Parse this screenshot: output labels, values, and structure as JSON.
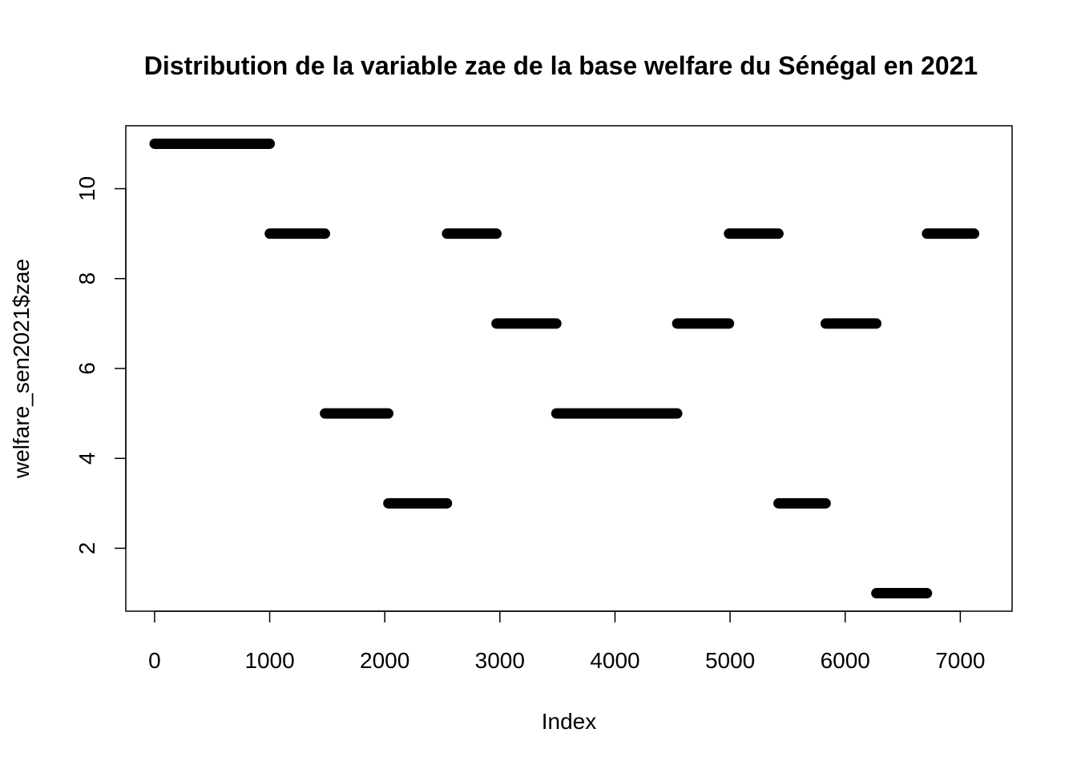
{
  "chart_data": {
    "type": "scatter",
    "title": "Distribution de la variable zae de la base welfare du Sénégal en 2021",
    "xlabel": "Index",
    "ylabel": "welfare_sen2021$zae",
    "xlim": [
      -250,
      7450
    ],
    "ylim": [
      0.6,
      11.4
    ],
    "xticks": [
      "0",
      "1000",
      "2000",
      "3000",
      "4000",
      "5000",
      "6000",
      "7000"
    ],
    "xtick_values": [
      0,
      1000,
      2000,
      3000,
      4000,
      5000,
      6000,
      7000
    ],
    "yticks": [
      "2",
      "4",
      "6",
      "8",
      "10"
    ],
    "ytick_values": [
      2,
      4,
      6,
      8,
      10
    ],
    "grid": false,
    "point_color": "#000000",
    "segments": [
      {
        "x_start": 1,
        "x_end": 1000,
        "y": 11
      },
      {
        "x_start": 1001,
        "x_end": 1480,
        "y": 9
      },
      {
        "x_start": 1481,
        "x_end": 2030,
        "y": 5
      },
      {
        "x_start": 2031,
        "x_end": 2540,
        "y": 3
      },
      {
        "x_start": 2541,
        "x_end": 2970,
        "y": 9
      },
      {
        "x_start": 2971,
        "x_end": 3490,
        "y": 7
      },
      {
        "x_start": 3491,
        "x_end": 4540,
        "y": 5
      },
      {
        "x_start": 4541,
        "x_end": 4990,
        "y": 7
      },
      {
        "x_start": 4991,
        "x_end": 5420,
        "y": 9
      },
      {
        "x_start": 5421,
        "x_end": 5830,
        "y": 3
      },
      {
        "x_start": 5831,
        "x_end": 6270,
        "y": 7
      },
      {
        "x_start": 6271,
        "x_end": 6710,
        "y": 1
      },
      {
        "x_start": 6711,
        "x_end": 7120,
        "y": 9
      }
    ]
  }
}
